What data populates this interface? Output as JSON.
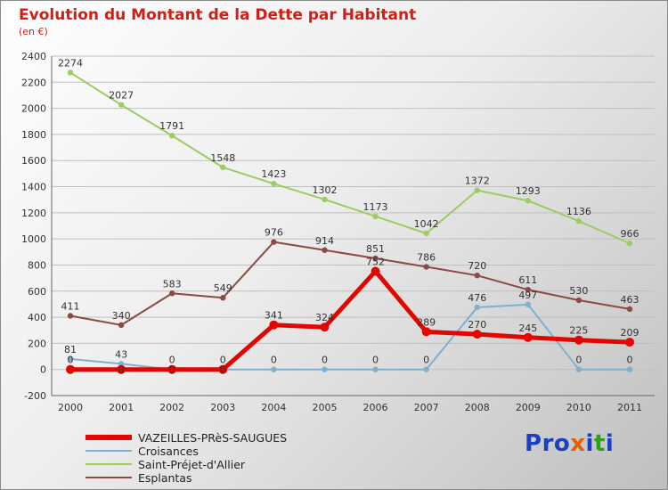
{
  "header": {
    "title": "Evolution du Montant de la Dette par Habitant",
    "subtitle": "(en €)"
  },
  "colors": {
    "title": "#d21e14",
    "subtitle": "#d21e14",
    "grid": "#bfbfbf",
    "axis": "#666666",
    "tick_label": "#333333",
    "data_label": "#333333"
  },
  "chart_data": {
    "type": "line",
    "title": "Evolution du Montant de la Dette par Habitant",
    "subtitle": "(en €)",
    "x": [
      2000,
      2001,
      2002,
      2003,
      2004,
      2005,
      2006,
      2007,
      2008,
      2009,
      2010,
      2011
    ],
    "ylim": [
      -200,
      2400
    ],
    "ytick_step": 200,
    "grid": true,
    "legend_position": "bottom-left",
    "series": [
      {
        "name": "VAZEILLES-PRèS-SAUGUES",
        "color": "#e10600",
        "width": 5,
        "values": [
          0,
          0,
          0,
          0,
          341,
          324,
          752,
          289,
          270,
          245,
          225,
          209
        ]
      },
      {
        "name": "Croisances",
        "color": "#7fb0d0",
        "width": 2,
        "values": [
          81,
          43,
          0,
          0,
          0,
          0,
          0,
          0,
          476,
          497,
          0,
          0
        ]
      },
      {
        "name": "Saint-Préjet-d'Allier",
        "color": "#9ccc63",
        "width": 2,
        "values": [
          2274,
          2027,
          1791,
          1548,
          1423,
          1302,
          1173,
          1042,
          1372,
          1293,
          1136,
          966
        ]
      },
      {
        "name": "Esplantas",
        "color": "#8b4a43",
        "width": 2,
        "values": [
          411,
          340,
          583,
          549,
          976,
          914,
          851,
          786,
          720,
          611,
          530,
          463
        ]
      }
    ]
  },
  "logo": {
    "text": "Proxiti",
    "letters": [
      {
        "ch": "P",
        "color": "#1a3fc4"
      },
      {
        "ch": "r",
        "color": "#1a3fc4"
      },
      {
        "ch": "o",
        "color": "#1a3fc4"
      },
      {
        "ch": "x",
        "color": "#e85d04"
      },
      {
        "ch": "i",
        "color": "#1a3fc4"
      },
      {
        "ch": "t",
        "color": "#2e9e1f"
      },
      {
        "ch": "i",
        "color": "#1a3fc4"
      }
    ]
  }
}
